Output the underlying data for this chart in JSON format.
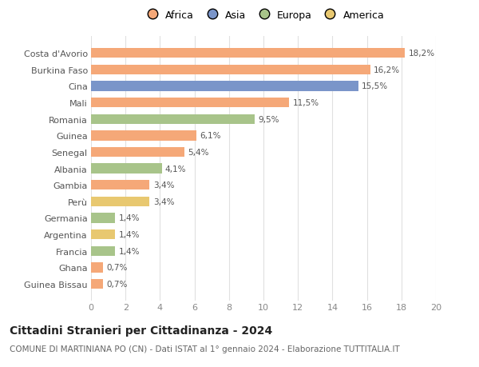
{
  "categories": [
    "Guinea Bissau",
    "Ghana",
    "Francia",
    "Argentina",
    "Germania",
    "Perù",
    "Gambia",
    "Albania",
    "Senegal",
    "Guinea",
    "Romania",
    "Mali",
    "Cina",
    "Burkina Faso",
    "Costa d'Avorio"
  ],
  "values": [
    0.7,
    0.7,
    1.4,
    1.4,
    1.4,
    3.4,
    3.4,
    4.1,
    5.4,
    6.1,
    9.5,
    11.5,
    15.5,
    16.2,
    18.2
  ],
  "colors": [
    "#F5A878",
    "#F5A878",
    "#A8C48A",
    "#E8C870",
    "#A8C48A",
    "#E8C870",
    "#F5A878",
    "#A8C48A",
    "#F5A878",
    "#F5A878",
    "#A8C48A",
    "#F5A878",
    "#7A95C9",
    "#F5A878",
    "#F5A878"
  ],
  "labels": [
    "0,7%",
    "0,7%",
    "1,4%",
    "1,4%",
    "1,4%",
    "3,4%",
    "3,4%",
    "4,1%",
    "5,4%",
    "6,1%",
    "9,5%",
    "11,5%",
    "15,5%",
    "16,2%",
    "18,2%"
  ],
  "legend_labels": [
    "Africa",
    "Asia",
    "Europa",
    "America"
  ],
  "legend_colors": [
    "#F5A878",
    "#7A95C9",
    "#A8C48A",
    "#E8C870"
  ],
  "xlim": [
    0,
    20
  ],
  "xticks": [
    0,
    2,
    4,
    6,
    8,
    10,
    12,
    14,
    16,
    18,
    20
  ],
  "title": "Cittadini Stranieri per Cittadinanza - 2024",
  "subtitle": "COMUNE DI MARTINIANA PO (CN) - Dati ISTAT al 1° gennaio 2024 - Elaborazione TUTTITALIA.IT",
  "background_color": "#ffffff",
  "grid_color": "#e0e0e0",
  "bar_height": 0.6,
  "label_fontsize": 7.5,
  "ytick_fontsize": 8.0,
  "xtick_fontsize": 8.0,
  "title_fontsize": 10,
  "subtitle_fontsize": 7.5,
  "legend_fontsize": 9.0
}
